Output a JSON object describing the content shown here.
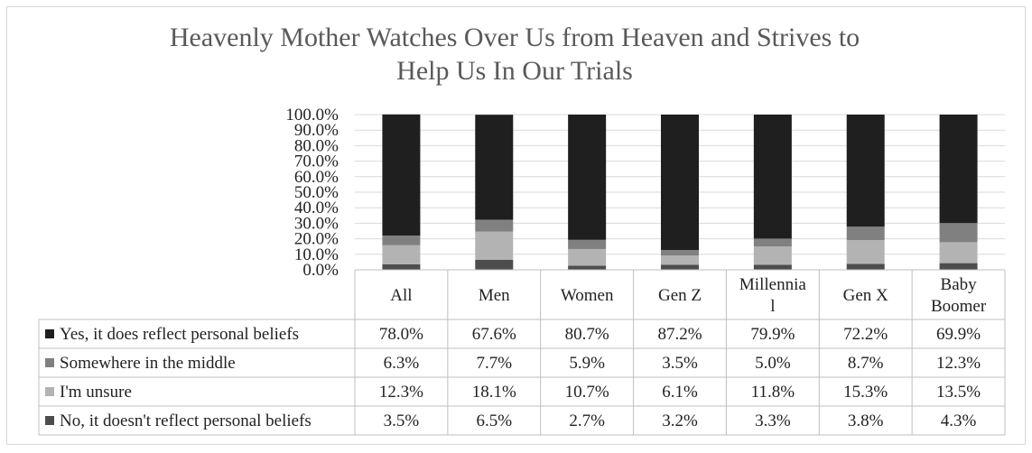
{
  "chart_data": {
    "type": "bar",
    "stacked": true,
    "title_lines": [
      "Heavenly Mother Watches Over Us from Heaven and Strives to",
      "Help Us In Our Trials"
    ],
    "categories": [
      "All",
      "Men",
      "Women",
      "Gen Z",
      "Millennial",
      "Gen X",
      "Baby Boomer"
    ],
    "category_label_lines": [
      [
        "All"
      ],
      [
        "Men"
      ],
      [
        "Women"
      ],
      [
        "Gen Z"
      ],
      [
        "Millennia",
        "l"
      ],
      [
        "Gen X"
      ],
      [
        "Baby",
        "Boomer"
      ]
    ],
    "y_ticks": [
      "100.0%",
      "90.0%",
      "80.0%",
      "70.0%",
      "60.0%",
      "50.0%",
      "40.0%",
      "30.0%",
      "20.0%",
      "10.0%",
      "0.0%"
    ],
    "ylim": [
      0,
      100
    ],
    "grid": true,
    "legend": "data-table",
    "series": [
      {
        "name": "Yes, it does reflect personal beliefs",
        "color": "#1f1f1f",
        "values": [
          78.0,
          67.6,
          80.7,
          87.2,
          79.9,
          72.2,
          69.9
        ],
        "labels": [
          "78.0%",
          "67.6%",
          "80.7%",
          "87.2%",
          "79.9%",
          "72.2%",
          "69.9%"
        ]
      },
      {
        "name": "Somewhere in the middle",
        "color": "#808080",
        "values": [
          6.3,
          7.7,
          5.9,
          3.5,
          5.0,
          8.7,
          12.3
        ],
        "labels": [
          "6.3%",
          "7.7%",
          "5.9%",
          "3.5%",
          "5.0%",
          "8.7%",
          "12.3%"
        ]
      },
      {
        "name": "I'm unsure",
        "color": "#b3b3b3",
        "values": [
          12.3,
          18.1,
          10.7,
          6.1,
          11.8,
          15.3,
          13.5
        ],
        "labels": [
          "12.3%",
          "18.1%",
          "10.7%",
          "6.1%",
          "11.8%",
          "15.3%",
          "13.5%"
        ]
      },
      {
        "name": "No, it doesn't reflect personal beliefs",
        "color": "#4d4d4d",
        "values": [
          3.5,
          6.5,
          2.7,
          3.2,
          3.3,
          3.8,
          4.3
        ],
        "labels": [
          "3.5%",
          "6.5%",
          "2.7%",
          "3.2%",
          "3.3%",
          "3.8%",
          "4.3%"
        ]
      }
    ]
  }
}
